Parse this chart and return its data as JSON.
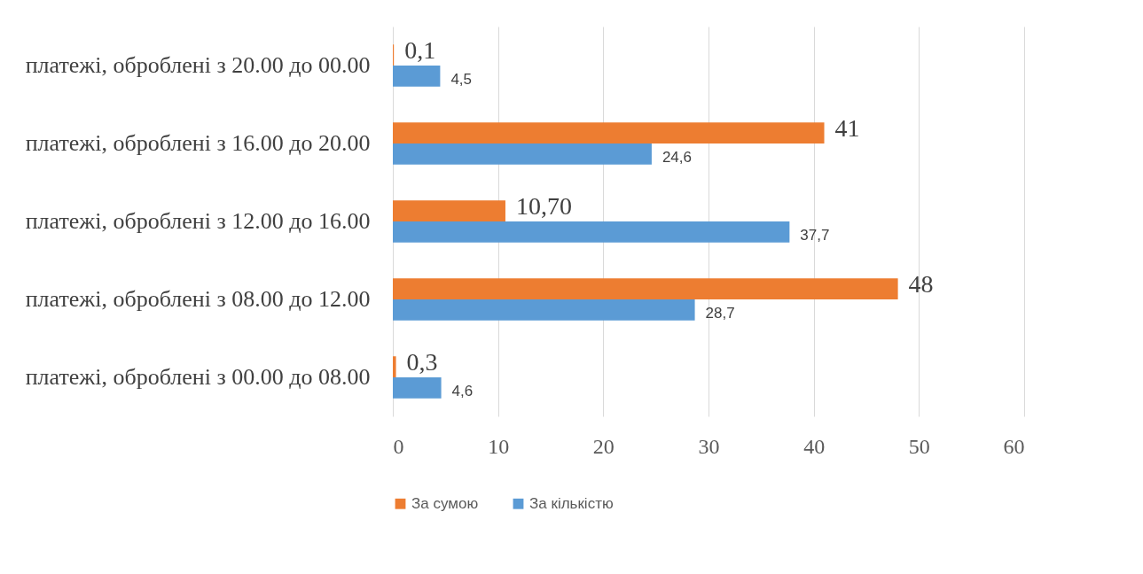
{
  "chart_data": {
    "type": "bar",
    "orientation": "horizontal",
    "categories": [
      "платежі, оброблені з 20.00 до 00.00",
      "платежі, оброблені з 16.00 до 20.00",
      "платежі, оброблені з 12.00 до 16.00",
      "платежі, оброблені з 08.00 до 12.00",
      "платежі, оброблені з 00.00 до 08.00"
    ],
    "series": [
      {
        "name": "За сумою",
        "color": "#ed7d31",
        "values": [
          0.1,
          41,
          10.7,
          48,
          0.3
        ],
        "value_labels": [
          "0,1",
          "41",
          "10,70",
          "48",
          "0,3"
        ]
      },
      {
        "name": "За кількістю",
        "color": "#5b9bd5",
        "values": [
          4.5,
          24.6,
          37.7,
          28.7,
          4.6
        ],
        "value_labels": [
          "4,5",
          "24,6",
          "37,7",
          "28,7",
          "4,6"
        ]
      }
    ],
    "xlim": [
      0,
      60
    ],
    "xticks": [
      0,
      10,
      20,
      30,
      40,
      50,
      60
    ],
    "grid": "x",
    "legend": "bottom"
  }
}
